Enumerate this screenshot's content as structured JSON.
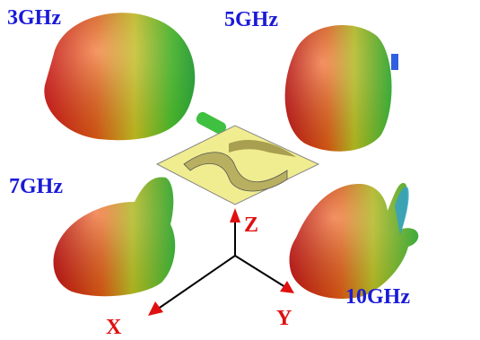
{
  "frequency_labels": [
    "3GHz",
    "5GHz",
    "7GHz",
    "10GHz"
  ],
  "axis_labels": {
    "x": "X",
    "y": "Y",
    "z": "Z"
  }
}
